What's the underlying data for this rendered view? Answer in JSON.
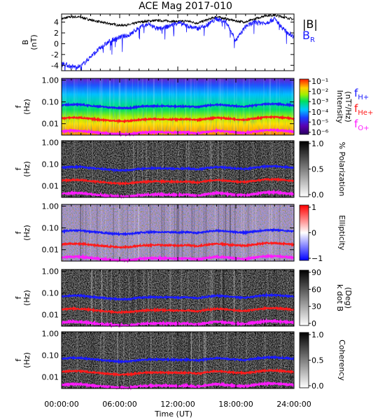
{
  "figure": {
    "title": "ACE Mag 2017-010",
    "xlabel": "Time (UT)",
    "x_ticks": [
      "00:00:00",
      "06:00:00",
      "12:00:00",
      "18:00:00",
      "24:00:00"
    ],
    "f_ticks": [
      "1.00",
      "0.10",
      "0.01"
    ],
    "f_ylabel_top": "f",
    "f_ylabel_bottom": "(Hz)"
  },
  "chart_data": [
    {
      "type": "line",
      "title": "ACE Mag 2017-010",
      "ylabel_top": "B",
      "ylabel_bottom": "(nT)",
      "y_ticks": [
        "4",
        "2",
        "0",
        "-2",
        "-4"
      ],
      "ylim": [
        -5,
        5.5
      ],
      "xlim_hours": [
        0,
        24
      ],
      "legend_absB": "|B|",
      "legend_BR_main": "B",
      "legend_BR_sub": "R",
      "colors": {
        "absB": "#000000",
        "BR": "#1a1aff"
      },
      "series": [
        {
          "name": "|B|",
          "x": [
            0,
            1,
            2,
            3,
            4,
            5,
            6,
            7,
            8,
            9,
            10,
            11,
            12,
            13,
            14,
            15,
            16,
            17,
            18,
            19,
            20,
            21,
            22,
            23,
            24
          ],
          "values": [
            4.6,
            5.0,
            4.9,
            4.4,
            4.0,
            3.7,
            3.4,
            3.5,
            4.0,
            4.2,
            4.3,
            4.2,
            4.1,
            4.2,
            3.8,
            4.4,
            5.0,
            4.6,
            4.2,
            4.0,
            4.6,
            5.2,
            5.3,
            4.9,
            4.5
          ]
        },
        {
          "name": "B_R",
          "x": [
            0,
            1,
            2,
            3,
            4,
            5,
            6,
            7,
            8,
            9,
            10,
            11,
            12,
            13,
            14,
            15,
            16,
            17,
            18,
            19,
            20,
            21,
            22,
            23,
            24
          ],
          "values": [
            -3.5,
            -4.3,
            -4.2,
            -2.4,
            -0.8,
            0.5,
            1.2,
            1.6,
            3.0,
            3.6,
            2.7,
            3.2,
            3.9,
            3.3,
            2.8,
            3.5,
            4.6,
            4.0,
            0.6,
            3.2,
            4.0,
            3.8,
            4.6,
            2.5,
            1.3
          ]
        }
      ]
    },
    {
      "type": "heatmap",
      "quantity": "Intensity",
      "colorbar_label_line1": "Intensity",
      "colorbar_label_line2": "(nT²/Hz)",
      "colorbar_ticks": [
        "10⁻¹",
        "10⁻²",
        "10⁻³",
        "10⁻⁴",
        "10⁻⁵",
        "10⁻⁶"
      ],
      "legend": [
        {
          "main": "f",
          "sub": "H+",
          "color": "#1a1aff"
        },
        {
          "main": "f",
          "sub": "He+",
          "color": "#ff1a1a"
        },
        {
          "main": "f",
          "sub": "O+",
          "color": "#ff1aff"
        }
      ]
    },
    {
      "type": "heatmap",
      "quantity": "% Polarization",
      "colorbar_label": "% Polarization",
      "colorbar_ticks": [
        "1.0",
        "0.5",
        "0.0"
      ]
    },
    {
      "type": "heatmap",
      "quantity": "Ellipticity",
      "colorbar_label": "Ellipticity",
      "colorbar_ticks": [
        "1",
        "0",
        "−1"
      ]
    },
    {
      "type": "heatmap",
      "quantity": "k dot B",
      "colorbar_label_line1": "k dot B",
      "colorbar_label_line2": "(Deg)",
      "colorbar_ticks": [
        "90",
        "60",
        "30",
        "0"
      ]
    },
    {
      "type": "heatmap",
      "quantity": "Coherency",
      "colorbar_label": "Coherency",
      "colorbar_ticks": [
        "1.0",
        "0.5",
        "0.0"
      ]
    }
  ],
  "gyrofrequency_lines": {
    "x_hours": [
      0,
      1,
      2,
      3,
      4,
      5,
      6,
      7,
      8,
      9,
      10,
      11,
      12,
      13,
      14,
      15,
      16,
      17,
      18,
      19,
      20,
      21,
      22,
      23,
      24
    ],
    "fH_hz": [
      0.07,
      0.076,
      0.075,
      0.067,
      0.061,
      0.056,
      0.052,
      0.053,
      0.061,
      0.064,
      0.065,
      0.064,
      0.062,
      0.064,
      0.058,
      0.067,
      0.076,
      0.07,
      0.064,
      0.061,
      0.07,
      0.079,
      0.081,
      0.075,
      0.069
    ],
    "fHe_hz": [
      0.0175,
      0.019,
      0.0187,
      0.0168,
      0.0152,
      0.014,
      0.013,
      0.0133,
      0.0152,
      0.016,
      0.0164,
      0.016,
      0.0156,
      0.016,
      0.0145,
      0.0168,
      0.019,
      0.0175,
      0.016,
      0.0152,
      0.0175,
      0.0198,
      0.0202,
      0.0187,
      0.0171
    ],
    "fO_hz": [
      0.0044,
      0.0048,
      0.0047,
      0.0042,
      0.0038,
      0.0035,
      0.0033,
      0.0033,
      0.0038,
      0.004,
      0.0041,
      0.004,
      0.0039,
      0.004,
      0.0036,
      0.0042,
      0.0048,
      0.0044,
      0.004,
      0.0038,
      0.0044,
      0.005,
      0.0051,
      0.0047,
      0.0043
    ],
    "colors": {
      "fH": "#1a1aff",
      "fHe": "#ff1a1a",
      "fO": "#ff1aff"
    }
  }
}
